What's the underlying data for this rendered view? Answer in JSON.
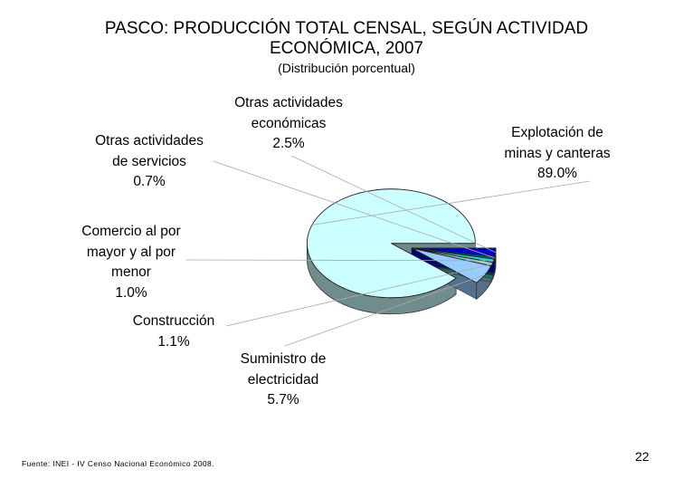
{
  "page": {
    "title_line1": "PASCO: PRODUCCIÓN TOTAL CENSAL, SEGÚN ACTIVIDAD",
    "title_line2": "ECONÓMICA, 2007",
    "subtitle": "(Distribución porcentual)",
    "source": "Fuente: INEI - IV Censo Nacional Económico 2008.",
    "page_number": "22"
  },
  "chart_data": {
    "type": "pie",
    "title": "PASCO: PRODUCCIÓN TOTAL CENSAL, SEGÚN ACTIVIDAD ECONÓMICA, 2007",
    "subtitle": "(Distribución porcentual)",
    "unit": "%",
    "slices": [
      {
        "label_lines": [
          "Explotación de",
          "minas y canteras"
        ],
        "value": 89.0,
        "value_label": "89.0%",
        "color": "#ccffff"
      },
      {
        "label_lines": [
          "Suministro de",
          "electricidad"
        ],
        "value": 5.7,
        "value_label": "5.7%",
        "color": "#99ccff"
      },
      {
        "label_lines": [
          "Construcción"
        ],
        "value": 1.1,
        "value_label": "1.1%",
        "color": "#99cccc"
      },
      {
        "label_lines": [
          "Comercio al por",
          "mayor y al por",
          "menor"
        ],
        "value": 1.0,
        "value_label": "1.0%",
        "color": "#33cccc"
      },
      {
        "label_lines": [
          "Otras actividades",
          "de servicios"
        ],
        "value": 0.7,
        "value_label": "0.7%",
        "color": "#006666"
      },
      {
        "label_lines": [
          "Otras actividades",
          "económicas"
        ],
        "value": 2.5,
        "value_label": "2.5%",
        "color": "#0000cc"
      }
    ]
  }
}
